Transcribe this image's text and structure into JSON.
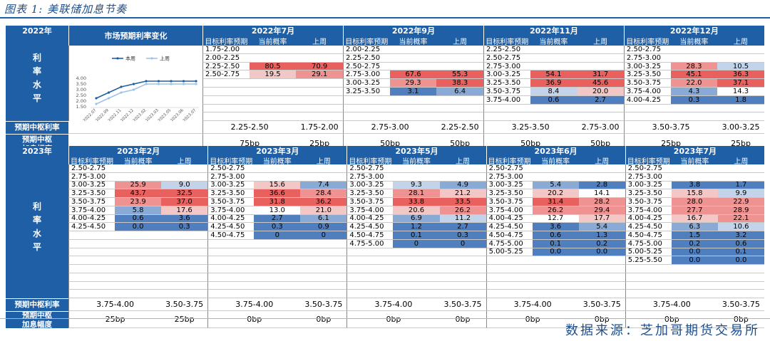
{
  "title": "图表 1: 美联储加息节奏",
  "source": "数据来源：芝加哥期货交易所",
  "colors": {
    "header": "#1f5fa6"
  },
  "labels": {
    "level": "利率水平",
    "center": "预期中枢利率",
    "hike": "预期中枢加息幅度",
    "col_target": "目标利率预期",
    "col_current": "当前概率",
    "col_last": "上周"
  },
  "sections": [
    {
      "year": "2022年",
      "rows": 9,
      "chart_title": "市场预期利率变化",
      "chart_data": {
        "type": "line",
        "title": "市场预期利率变化",
        "x": [
          "2022.07",
          "2022.09",
          "2022.11",
          "2022.12",
          "2023.02",
          "2023.03",
          "2023.05",
          "2023.06",
          "2023.07"
        ],
        "ylim": [
          1.5,
          4.0
        ],
        "yticks": [
          "1.50",
          "2.00",
          "2.50",
          "3.00",
          "3.50",
          "4.00"
        ],
        "series": [
          {
            "name": "本周",
            "color": "#1f5fa6",
            "values": [
              2.25,
              2.75,
              3.25,
              3.5,
              3.75,
              3.75,
              3.75,
              3.75,
              3.75
            ]
          },
          {
            "name": "上周",
            "color": "#9ec3e6",
            "values": [
              1.75,
              2.25,
              2.75,
              3.0,
              3.5,
              3.5,
              3.5,
              3.5,
              3.5
            ]
          }
        ]
      },
      "months": [
        {
          "name": "2022年7月",
          "center_cur": "2.25-2.50",
          "center_last": "1.75-2.00",
          "hike_cur": "75bp",
          "hike_last": "25bp",
          "rows": [
            [
              "1.75-2.00",
              "",
              ""
            ],
            [
              "2.00-2.25",
              "",
              ""
            ],
            [
              "2.25-2.50",
              "80.5",
              "70.9"
            ],
            [
              "2.50-2.75",
              "19.5",
              "29.1"
            ]
          ]
        },
        {
          "name": "2022年9月",
          "center_cur": "2.75-3.00",
          "center_last": "2.25-2.50",
          "hike_cur": "50bp",
          "hike_last": "50bp",
          "rows": [
            [
              "2.00-2.25",
              "",
              ""
            ],
            [
              "2.25-2.50",
              "",
              ""
            ],
            [
              "2.50-2.75",
              "",
              ""
            ],
            [
              "2.75-3.00",
              "67.6",
              "55.3"
            ],
            [
              "3.00-3.25",
              "29.3",
              "38.3"
            ],
            [
              "3.25-3.50",
              "3.1",
              "6.4"
            ]
          ]
        },
        {
          "name": "2022年11月",
          "center_cur": "3.25-3.50",
          "center_last": "2.75-3.00",
          "hike_cur": "50bp",
          "hike_last": "50bp",
          "rows": [
            [
              "2.25-2.50",
              "",
              ""
            ],
            [
              "2.50-2.75",
              "",
              ""
            ],
            [
              "2.75-3.00",
              "",
              ""
            ],
            [
              "3.00-3.25",
              "54.1",
              "31.7"
            ],
            [
              "3.25-3.50",
              "36.9",
              "45.6"
            ],
            [
              "3.50-3.75",
              "8.4",
              "20.0"
            ],
            [
              "3.75-4.00",
              "0.6",
              "2.7"
            ]
          ]
        },
        {
          "name": "2022年12月",
          "center_cur": "3.50-3.75",
          "center_last": "3.00-3.25",
          "hike_cur": "25bp",
          "hike_last": "25bp",
          "rows": [
            [
              "2.50-2.75",
              "",
              ""
            ],
            [
              "2.75-3.00",
              "",
              ""
            ],
            [
              "3.00-3.25",
              "28.3",
              "10.5"
            ],
            [
              "3.25-3.50",
              "45.1",
              "36.3"
            ],
            [
              "3.50-3.75",
              "22.0",
              "37.1"
            ],
            [
              "3.75-4.00",
              "4.3",
              "14.3"
            ],
            [
              "4.00-4.25",
              "0.3",
              "1.8"
            ]
          ]
        }
      ]
    },
    {
      "year": "2023年",
      "rows": 16,
      "months": [
        {
          "name": "2023年2月",
          "center_cur": "3.75-4.00",
          "center_last": "3.50-3.75",
          "hike_cur": "25bp",
          "hike_last": "25bp",
          "rows": [
            [
              "2.50-2.75",
              "",
              ""
            ],
            [
              "2.75-3.00",
              "",
              ""
            ],
            [
              "3.00-3.25",
              "25.9",
              "9.0"
            ],
            [
              "3.25-3.50",
              "43.7",
              "32.5"
            ],
            [
              "3.50-3.75",
              "23.9",
              "37.0"
            ],
            [
              "3.75-4.00",
              "5.8",
              "17.6"
            ],
            [
              "4.00-4.25",
              "0.6",
              "3.6"
            ],
            [
              "4.25-4.50",
              "0.0",
              "0.3"
            ]
          ]
        },
        {
          "name": "2023年3月",
          "center_cur": "3.75-4.00",
          "center_last": "3.50-3.75",
          "hike_cur": "0bp",
          "hike_last": "0bp",
          "rows": [
            [
              "2.50-2.75",
              "",
              ""
            ],
            [
              "2.75-3.00",
              "",
              ""
            ],
            [
              "3.00-3.25",
              "15.6",
              "7.4"
            ],
            [
              "3.25-3.50",
              "36.6",
              "28.4"
            ],
            [
              "3.50-3.75",
              "31.8",
              "36.2"
            ],
            [
              "3.75-4.00",
              "13.0",
              "21.0"
            ],
            [
              "4.00-4.25",
              "2.7",
              "6.1"
            ],
            [
              "4.25-4.50",
              "0.3",
              "0.9"
            ],
            [
              "4.50-4.75",
              "0",
              "0"
            ]
          ]
        },
        {
          "name": "2023年5月",
          "center_cur": "3.75-4.00",
          "center_last": "3.50-3.75",
          "hike_cur": "0bp",
          "hike_last": "0bp",
          "rows": [
            [
              "2.50-2.75",
              "",
              ""
            ],
            [
              "2.75-3.00",
              "",
              ""
            ],
            [
              "3.00-3.25",
              "9.3",
              "4.9"
            ],
            [
              "3.25-3.50",
              "28.1",
              "21.2"
            ],
            [
              "3.50-3.75",
              "33.8",
              "33.5"
            ],
            [
              "3.75-4.00",
              "20.6",
              "26.2"
            ],
            [
              "4.00-4.25",
              "6.9",
              "11.2"
            ],
            [
              "4.25-4.50",
              "1.2",
              "2.7"
            ],
            [
              "4.50-4.75",
              "0.1",
              "0.3"
            ],
            [
              "4.75-5.00",
              "0",
              "0"
            ]
          ]
        },
        {
          "name": "2023年6月",
          "center_cur": "3.75-4.00",
          "center_last": "3.50-3.75",
          "hike_cur": "0bp",
          "hike_last": "0bp",
          "rows": [
            [
              "2.50-2.75",
              "",
              ""
            ],
            [
              "2.75-3.00",
              "",
              ""
            ],
            [
              "3.00-3.25",
              "5.4",
              "2.8"
            ],
            [
              "3.25-3.50",
              "20.2",
              "14.1"
            ],
            [
              "3.50-3.75",
              "31.4",
              "28.2"
            ],
            [
              "3.75-4.00",
              "26.2",
              "29.4"
            ],
            [
              "4.00-4.25",
              "12.7",
              "17.7"
            ],
            [
              "4.25-4.50",
              "3.6",
              "5.4"
            ],
            [
              "4.50-4.75",
              "0.6",
              "1.3"
            ],
            [
              "4.75-5.00",
              "0.1",
              "0.2"
            ],
            [
              "5.00-5.25",
              "0.0",
              "0.0"
            ]
          ]
        },
        {
          "name": "2023年7月",
          "center_cur": "3.75-4.00",
          "center_last": "3.50-3.75",
          "hike_cur": "0bp",
          "hike_last": "0bp",
          "rows": [
            [
              "2.50-2.75",
              "",
              ""
            ],
            [
              "2.75-3.00",
              "",
              ""
            ],
            [
              "3.00-3.25",
              "3.8",
              "1.7"
            ],
            [
              "3.25-3.50",
              "15.8",
              "9.9"
            ],
            [
              "3.50-3.75",
              "28.0",
              "22.9"
            ],
            [
              "3.75-4.00",
              "27.7",
              "28.9"
            ],
            [
              "4.00-4.25",
              "16.7",
              "22.1"
            ],
            [
              "4.25-4.50",
              "6.3",
              "10.6"
            ],
            [
              "4.50-4.75",
              "1.5",
              "3.2"
            ],
            [
              "4.75-5.00",
              "0.2",
              "0.6"
            ],
            [
              "5.00-5.25",
              "0.0",
              "0.1"
            ],
            [
              "5.25-5.50",
              "0.0",
              "0.0"
            ]
          ]
        }
      ]
    }
  ]
}
